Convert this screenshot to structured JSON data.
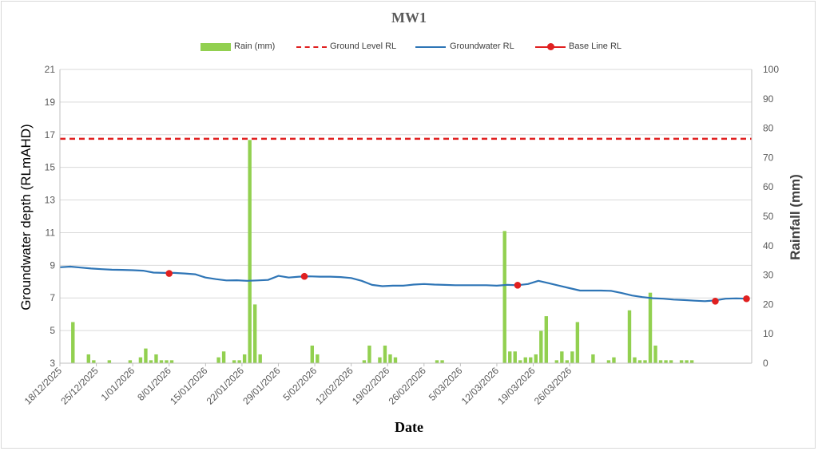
{
  "chart_data": {
    "type": "bar+line",
    "title": "MW1",
    "xlabel": "Date",
    "ylabel_left": "Groundwater depth (RLmAHD)",
    "ylabel_right": "Rainfall (mm)",
    "ylim_left": [
      3,
      21
    ],
    "yticks_left": [
      "3",
      "5",
      "7",
      "9",
      "11",
      "13",
      "15",
      "17",
      "19",
      "21"
    ],
    "ylim_right": [
      0,
      100
    ],
    "yticks_right": [
      "0",
      "10",
      "20",
      "30",
      "40",
      "50",
      "60",
      "70",
      "80",
      "90",
      "100"
    ],
    "xlim": [
      "2025-12-18",
      "2026-04-01"
    ],
    "xtick_labels": [
      "18/12/2025",
      "25/12/2025",
      "1/01/2026",
      "8/01/2026",
      "15/01/2026",
      "22/01/2026",
      "29/01/2026",
      "5/02/2026",
      "12/02/2026",
      "19/02/2026",
      "26/02/2026",
      "5/03/2026",
      "12/03/2026",
      "19/03/2026",
      "26/03/2026"
    ],
    "grid": true,
    "legend": {
      "placement": "top",
      "entries": [
        "Rain (mm)",
        "Ground Level RL",
        "Groundwater RL",
        "Base Line RL"
      ]
    },
    "colors": {
      "rain": "#92d050",
      "ground_level": "#e02020",
      "groundwater": "#2e75b6",
      "base_line": "#e02020"
    },
    "ground_level_rl": 16.75,
    "rain_series": {
      "name": "Rain (mm)",
      "days": [
        2,
        5,
        6,
        9,
        13,
        15,
        16,
        17,
        18,
        19,
        20,
        21,
        30,
        31,
        33,
        34,
        35,
        36,
        37,
        38,
        48,
        49,
        58,
        59,
        61,
        62,
        63,
        64,
        72,
        73,
        85,
        86,
        87,
        88,
        89,
        90,
        91,
        92,
        93,
        95,
        96,
        97,
        98,
        99,
        102,
        105,
        106,
        109,
        110,
        111,
        112,
        113,
        114,
        115,
        116,
        117,
        119,
        120,
        121
      ],
      "values": [
        14,
        3,
        1,
        1,
        1,
        2,
        5,
        1,
        3,
        1,
        1,
        1,
        2,
        4,
        1,
        1,
        3,
        76,
        20,
        3,
        6,
        3,
        1,
        6,
        2,
        6,
        3,
        2,
        1,
        1,
        45,
        4,
        4,
        1,
        2,
        2,
        3,
        11,
        16,
        1,
        4,
        1,
        4,
        14,
        3,
        1,
        2,
        18,
        2,
        1,
        1,
        24,
        6,
        1,
        1,
        1,
        1,
        1,
        1
      ],
      "x_start": "2025-12-18"
    },
    "groundwater_series": {
      "name": "Groundwater RL",
      "points": [
        [
          0,
          8.88
        ],
        [
          2,
          8.92
        ],
        [
          4,
          8.86
        ],
        [
          6,
          8.8
        ],
        [
          8,
          8.76
        ],
        [
          10,
          8.73
        ],
        [
          12,
          8.72
        ],
        [
          14,
          8.7
        ],
        [
          16,
          8.67
        ],
        [
          18,
          8.55
        ],
        [
          20,
          8.53
        ],
        [
          22,
          8.53
        ],
        [
          24,
          8.5
        ],
        [
          26,
          8.45
        ],
        [
          28,
          8.25
        ],
        [
          30,
          8.15
        ],
        [
          32,
          8.07
        ],
        [
          34,
          8.08
        ],
        [
          36,
          8.05
        ],
        [
          38,
          8.07
        ],
        [
          40,
          8.1
        ],
        [
          42,
          8.35
        ],
        [
          44,
          8.25
        ],
        [
          46,
          8.3
        ],
        [
          48,
          8.32
        ],
        [
          50,
          8.3
        ],
        [
          52,
          8.3
        ],
        [
          54,
          8.28
        ],
        [
          56,
          8.22
        ],
        [
          58,
          8.05
        ],
        [
          60,
          7.8
        ],
        [
          62,
          7.72
        ],
        [
          64,
          7.75
        ],
        [
          66,
          7.75
        ],
        [
          68,
          7.82
        ],
        [
          70,
          7.85
        ],
        [
          72,
          7.82
        ],
        [
          74,
          7.8
        ],
        [
          76,
          7.78
        ],
        [
          78,
          7.78
        ],
        [
          80,
          7.78
        ],
        [
          82,
          7.78
        ],
        [
          84,
          7.75
        ],
        [
          86,
          7.8
        ],
        [
          88,
          7.78
        ],
        [
          90,
          7.85
        ],
        [
          92,
          8.05
        ],
        [
          94,
          7.9
        ],
        [
          96,
          7.75
        ],
        [
          98,
          7.6
        ],
        [
          100,
          7.45
        ],
        [
          102,
          7.45
        ],
        [
          104,
          7.45
        ],
        [
          106,
          7.43
        ],
        [
          108,
          7.3
        ],
        [
          110,
          7.15
        ],
        [
          112,
          7.05
        ],
        [
          114,
          6.98
        ],
        [
          116,
          6.95
        ],
        [
          118,
          6.9
        ],
        [
          120,
          6.87
        ],
        [
          122,
          6.83
        ],
        [
          124,
          6.8
        ],
        [
          126,
          6.85
        ],
        [
          128,
          6.95
        ],
        [
          130,
          6.97
        ],
        [
          132,
          6.95
        ]
      ]
    },
    "baseline_series": {
      "name": "Base Line RL",
      "days": [
        21,
        47,
        88,
        126,
        132
      ],
      "values": [
        8.5,
        8.32,
        7.78,
        6.8,
        6.95
      ]
    },
    "x_total_days": 133
  }
}
